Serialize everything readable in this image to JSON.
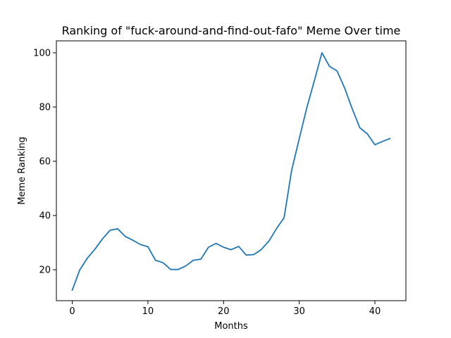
{
  "chart_data": {
    "type": "line",
    "title": "Ranking of \"fuck-around-and-find-out-fafo\" Meme Over time",
    "xlabel": "Months",
    "ylabel": "Meme Ranking",
    "xlim": [
      -2.1,
      44.1
    ],
    "ylim": [
      8.6,
      104.4
    ],
    "xticks": [
      0,
      10,
      20,
      30,
      40
    ],
    "yticks": [
      20,
      40,
      60,
      80,
      100
    ],
    "grid": false,
    "color": "#1f77b4",
    "series": [
      {
        "x": [
          0,
          1,
          2,
          3,
          4,
          5,
          6,
          7,
          8,
          9,
          10,
          11,
          12,
          13,
          14,
          15,
          16,
          17,
          18,
          19,
          20,
          21,
          22,
          23,
          24,
          25,
          26,
          27,
          28,
          29,
          30,
          31,
          32,
          33,
          34,
          35,
          36,
          37,
          38,
          39,
          40,
          41,
          42
        ],
        "y": [
          12.5,
          20.0,
          24.3,
          27.6,
          31.4,
          34.6,
          35.1,
          32.3,
          30.9,
          29.3,
          28.5,
          23.5,
          22.6,
          20.1,
          20.1,
          21.4,
          23.5,
          23.9,
          28.3,
          29.7,
          28.3,
          27.4,
          28.6,
          25.4,
          25.6,
          27.5,
          30.6,
          35.2,
          39.2,
          56.7,
          68.3,
          79.7,
          89.7,
          100.0,
          95.0,
          93.3,
          87.0,
          79.4,
          72.4,
          70.1,
          66.1,
          67.3,
          68.4
        ]
      }
    ]
  }
}
